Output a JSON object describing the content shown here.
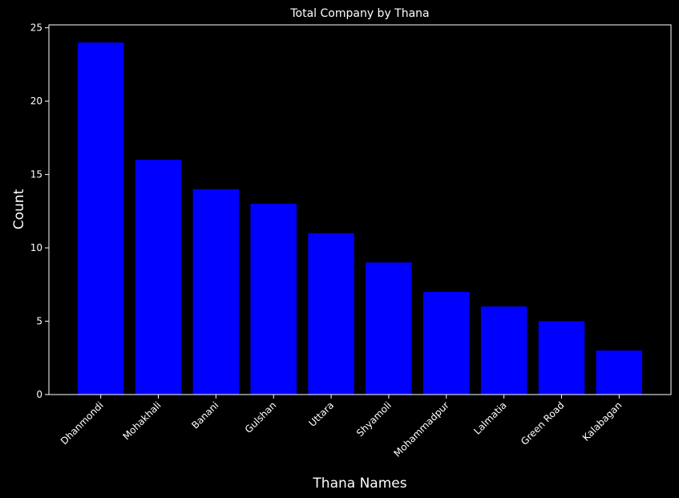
{
  "chart_data": {
    "type": "bar",
    "title": "Total Company by Thana",
    "xlabel": "Thana Names",
    "ylabel": "Count",
    "categories": [
      "Dhanmondi",
      "Mohakhali",
      "Banani",
      "Gulshan",
      "Uttara",
      "Shyamoli",
      "Mohammadpur",
      "Lalmatia",
      "Green Road",
      "Kalabagan"
    ],
    "values": [
      24,
      16,
      14,
      13,
      11,
      9,
      7,
      6,
      5,
      3
    ],
    "ylim": [
      0,
      25.2
    ],
    "yticks": [
      0,
      5,
      10,
      15,
      20,
      25
    ],
    "grid": false,
    "legend": false
  },
  "colors": {
    "background": "#000000",
    "bar": "#0000ff",
    "axis": "#ffffff",
    "text": "#ffffff"
  }
}
